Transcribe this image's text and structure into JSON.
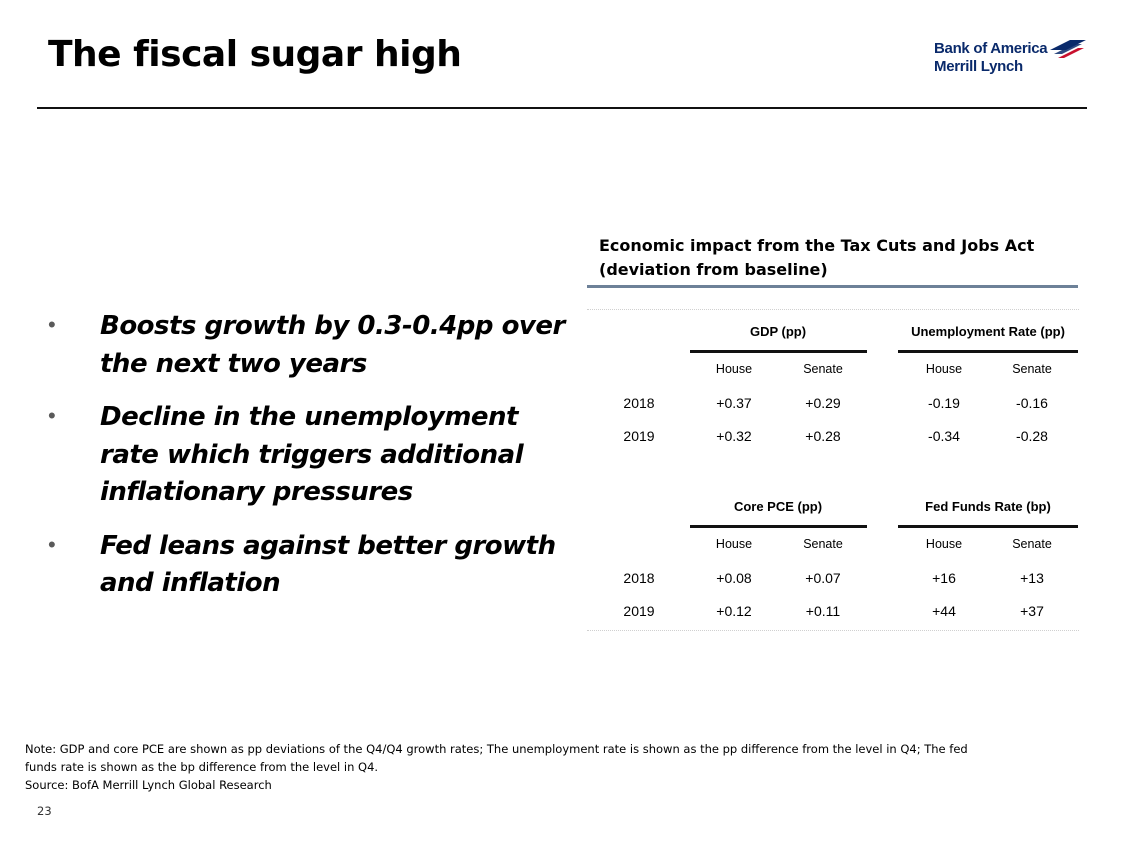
{
  "header": {
    "title": "The fiscal sugar high",
    "logo_line1": "Bank of America",
    "logo_line2": "Merrill Lynch",
    "logo_color": "#0a2a6b"
  },
  "bullets": [
    "Boosts growth by 0.3-0.4pp over the next two years",
    "Decline in the unemployment rate which triggers additional inflationary pressures",
    "Fed leans against better growth and inflation"
  ],
  "table": {
    "title_line1": "Economic impact from the Tax Cuts and Jobs Act",
    "title_line2": "(deviation from baseline)",
    "sub_headers": [
      "House",
      "Senate"
    ],
    "top": {
      "group1": "GDP (pp)",
      "group2": "Unemployment Rate (pp)",
      "rows": [
        {
          "year": "2018",
          "values": [
            "+0.37",
            "+0.29",
            "-0.19",
            "-0.16"
          ]
        },
        {
          "year": "2019",
          "values": [
            "+0.32",
            "+0.28",
            "-0.34",
            "-0.28"
          ]
        }
      ]
    },
    "bottom": {
      "group1": "Core PCE (pp)",
      "group2": "Fed Funds Rate (bp)",
      "rows": [
        {
          "year": "2018",
          "values": [
            "+0.08",
            "+0.07",
            "+16",
            "+13"
          ]
        },
        {
          "year": "2019",
          "values": [
            "+0.12",
            "+0.11",
            "+44",
            "+37"
          ]
        }
      ]
    }
  },
  "footer": {
    "note_line1": "Note: GDP and core PCE are shown as pp deviations of the Q4/Q4 growth rates; The unemployment rate is shown as the pp difference from the level in Q4; The fed",
    "note_line2": "funds rate is shown as the bp difference from the level in Q4.",
    "source": "Source: BofA Merrill Lynch Global Research",
    "page_number": "23"
  }
}
